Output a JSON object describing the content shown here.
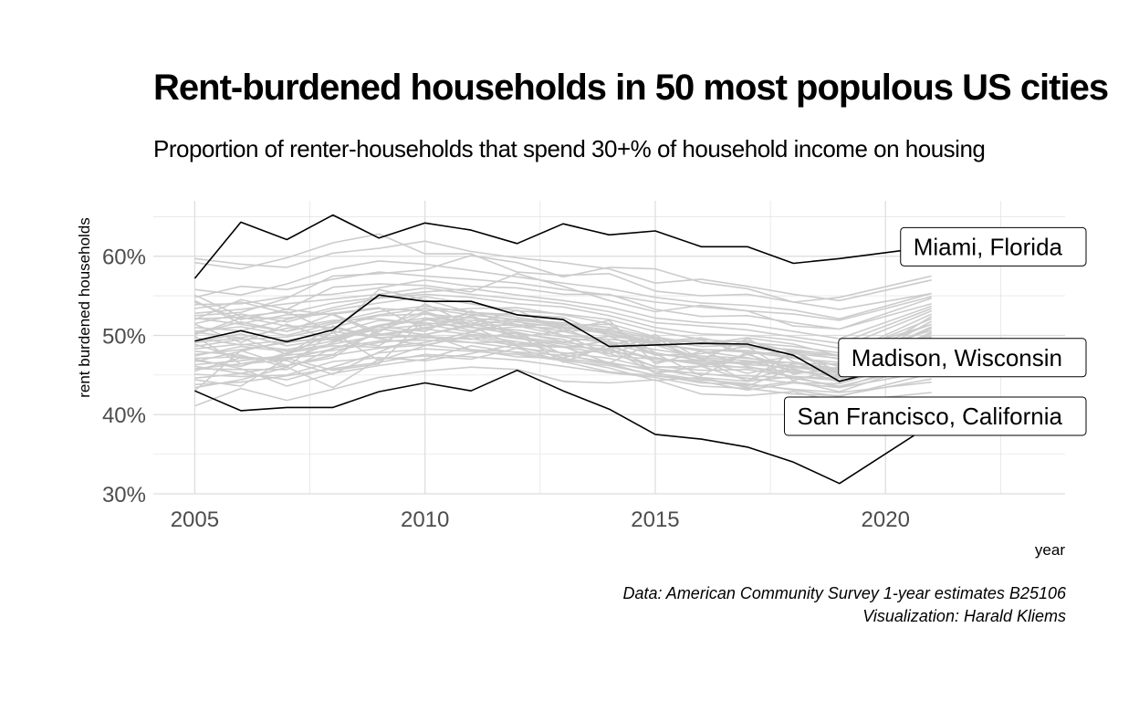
{
  "title": "Rent-burdened households in 50 most populous US cities",
  "subtitle": "Proportion of renter-households that spend 30+% of household income on housing",
  "caption": {
    "line1": "Data: American Community Survey 1-year estimates B25106",
    "line2": "Visualization: Harald Kliems"
  },
  "colors": {
    "highlight": "#000000",
    "background_series": "#cccccc",
    "grid": "#dcdcdc",
    "tick_text": "#4d4d4d"
  },
  "chart_data": {
    "type": "line",
    "title": "Rent-burdened households in 50 most populous US cities",
    "subtitle": "Proportion of renter-households that spend 30+% of household income on housing",
    "xlabel": "year",
    "ylabel": "rent burdened households",
    "x": [
      2005,
      2006,
      2007,
      2008,
      2009,
      2010,
      2011,
      2012,
      2013,
      2014,
      2015,
      2016,
      2017,
      2018,
      2019,
      2021
    ],
    "xlim": [
      2004.1,
      2023.9
    ],
    "ylim": [
      0.3,
      0.67
    ],
    "x_ticks": [
      2005,
      2010,
      2015,
      2020
    ],
    "x_tick_labels": [
      "2005",
      "2010",
      "2015",
      "2020"
    ],
    "y_ticks": [
      0.3,
      0.4,
      0.5,
      0.6
    ],
    "y_tick_labels": [
      "30%",
      "40%",
      "50%",
      "60%"
    ],
    "grid": true,
    "highlighted_series": [
      {
        "name": "Miami, Florida",
        "values": [
          0.572,
          0.643,
          0.621,
          0.652,
          0.623,
          0.642,
          0.633,
          0.616,
          0.641,
          0.627,
          0.632,
          0.612,
          0.612,
          0.591,
          0.597,
          0.612
        ]
      },
      {
        "name": "Madison, Wisconsin",
        "values": [
          0.493,
          0.506,
          0.492,
          0.507,
          0.551,
          0.543,
          0.543,
          0.526,
          0.52,
          0.486,
          0.488,
          0.49,
          0.489,
          0.475,
          0.442,
          0.472
        ]
      },
      {
        "name": "San Francisco, California",
        "values": [
          0.43,
          0.405,
          0.409,
          0.409,
          0.429,
          0.44,
          0.43,
          0.456,
          0.43,
          0.407,
          0.375,
          0.369,
          0.359,
          0.34,
          0.313,
          0.388
        ]
      }
    ],
    "background_series": [
      {
        "values": [
          0.43,
          0.481,
          0.462,
          0.472,
          0.508,
          0.501,
          0.514,
          0.504,
          0.476,
          0.464,
          0.449,
          0.445,
          0.436,
          0.458,
          0.441,
          0.492
        ]
      },
      {
        "values": [
          0.491,
          0.497,
          0.476,
          0.512,
          0.497,
          0.499,
          0.495,
          0.504,
          0.492,
          0.499,
          0.475,
          0.477,
          0.486,
          0.451,
          0.46,
          0.475
        ]
      },
      {
        "values": [
          0.542,
          0.52,
          0.533,
          0.526,
          0.501,
          0.51,
          0.517,
          0.497,
          0.486,
          0.465,
          0.492,
          0.47,
          0.442,
          0.48,
          0.454,
          0.524
        ]
      },
      {
        "values": [
          0.444,
          0.436,
          0.471,
          0.456,
          0.464,
          0.521,
          0.506,
          0.511,
          0.509,
          0.487,
          0.501,
          0.47,
          0.463,
          0.46,
          0.454,
          0.504
        ]
      },
      {
        "values": [
          0.501,
          0.522,
          0.522,
          0.528,
          0.535,
          0.508,
          0.525,
          0.502,
          0.466,
          0.488,
          0.467,
          0.469,
          0.496,
          0.467,
          0.454,
          0.518
        ]
      },
      {
        "values": [
          0.521,
          0.523,
          0.512,
          0.51,
          0.496,
          0.488,
          0.499,
          0.489,
          0.492,
          0.499,
          0.477,
          0.449,
          0.479,
          0.443,
          0.458,
          0.509
        ]
      },
      {
        "values": [
          0.458,
          0.457,
          0.457,
          0.484,
          0.493,
          0.494,
          0.491,
          0.492,
          0.485,
          0.493,
          0.452,
          0.461,
          0.443,
          0.461,
          0.457,
          0.511
        ]
      },
      {
        "values": [
          0.458,
          0.464,
          0.469,
          0.491,
          0.511,
          0.505,
          0.531,
          0.512,
          0.5,
          0.477,
          0.494,
          0.491,
          0.493,
          0.479,
          0.45,
          0.488
        ]
      },
      {
        "values": [
          0.514,
          0.491,
          0.514,
          0.494,
          0.487,
          0.521,
          0.514,
          0.532,
          0.506,
          0.519,
          0.464,
          0.48,
          0.461,
          0.448,
          0.443,
          0.503
        ]
      },
      {
        "values": [
          0.471,
          0.473,
          0.468,
          0.451,
          0.479,
          0.502,
          0.482,
          0.473,
          0.471,
          0.464,
          0.458,
          0.447,
          0.442,
          0.448,
          0.434,
          0.47
        ]
      },
      {
        "values": [
          0.551,
          0.524,
          0.53,
          0.504,
          0.558,
          0.545,
          0.529,
          0.526,
          0.523,
          0.499,
          0.492,
          0.494,
          0.477,
          0.479,
          0.474,
          0.527
        ]
      },
      {
        "values": [
          0.499,
          0.464,
          0.475,
          0.504,
          0.468,
          0.487,
          0.501,
          0.492,
          0.477,
          0.482,
          0.498,
          0.461,
          0.476,
          0.458,
          0.442,
          0.467
        ]
      },
      {
        "values": [
          0.48,
          0.475,
          0.46,
          0.505,
          0.497,
          0.501,
          0.512,
          0.486,
          0.472,
          0.484,
          0.46,
          0.461,
          0.46,
          0.453,
          0.456,
          0.492
        ]
      },
      {
        "values": [
          0.544,
          0.515,
          0.526,
          0.527,
          0.504,
          0.54,
          0.513,
          0.513,
          0.513,
          0.514,
          0.478,
          0.468,
          0.452,
          0.464,
          0.464,
          0.509
        ]
      },
      {
        "values": [
          0.451,
          0.448,
          0.45,
          0.467,
          0.472,
          0.468,
          0.477,
          0.489,
          0.486,
          0.483,
          0.452,
          0.444,
          0.439,
          0.431,
          0.423,
          0.452
        ]
      },
      {
        "values": [
          0.504,
          0.497,
          0.509,
          0.519,
          0.521,
          0.514,
          0.504,
          0.518,
          0.5,
          0.495,
          0.49,
          0.48,
          0.472,
          0.46,
          0.452,
          0.496
        ]
      },
      {
        "values": [
          0.489,
          0.471,
          0.472,
          0.476,
          0.505,
          0.528,
          0.51,
          0.502,
          0.495,
          0.474,
          0.47,
          0.467,
          0.464,
          0.474,
          0.461,
          0.484
        ]
      },
      {
        "values": [
          0.434,
          0.444,
          0.46,
          0.434,
          0.47,
          0.474,
          0.47,
          0.484,
          0.467,
          0.454,
          0.449,
          0.442,
          0.431,
          0.44,
          0.434,
          0.455
        ]
      },
      {
        "values": [
          0.467,
          0.48,
          0.493,
          0.495,
          0.508,
          0.513,
          0.523,
          0.498,
          0.505,
          0.508,
          0.488,
          0.47,
          0.465,
          0.466,
          0.448,
          0.481
        ]
      },
      {
        "values": [
          0.539,
          0.54,
          0.549,
          0.552,
          0.56,
          0.57,
          0.562,
          0.56,
          0.552,
          0.552,
          0.533,
          0.524,
          0.525,
          0.516,
          0.508,
          0.547
        ]
      },
      {
        "values": [
          0.592,
          0.584,
          0.598,
          0.617,
          0.628,
          0.603,
          0.603,
          0.58,
          0.576,
          0.578,
          0.556,
          0.55,
          0.552,
          0.542,
          0.548,
          0.575
        ]
      },
      {
        "values": [
          0.525,
          0.529,
          0.547,
          0.575,
          0.578,
          0.583,
          0.601,
          0.592,
          0.574,
          0.586,
          0.584,
          0.567,
          0.559,
          0.542,
          0.533,
          0.553
        ]
      },
      {
        "values": [
          0.52,
          0.545,
          0.533,
          0.561,
          0.565,
          0.563,
          0.555,
          0.578,
          0.562,
          0.544,
          0.53,
          0.538,
          0.531,
          0.512,
          0.508,
          0.54
        ]
      },
      {
        "values": [
          0.47,
          0.458,
          0.436,
          0.452,
          0.462,
          0.47,
          0.487,
          0.478,
          0.47,
          0.459,
          0.443,
          0.447,
          0.434,
          0.442,
          0.429,
          0.467
        ]
      },
      {
        "values": [
          0.411,
          0.433,
          0.418,
          0.432,
          0.447,
          0.455,
          0.46,
          0.457,
          0.442,
          0.44,
          0.444,
          0.426,
          0.424,
          0.429,
          0.416,
          0.428
        ]
      },
      {
        "values": [
          0.483,
          0.489,
          0.482,
          0.493,
          0.511,
          0.53,
          0.513,
          0.521,
          0.511,
          0.505,
          0.492,
          0.497,
          0.485,
          0.477,
          0.471,
          0.514
        ]
      },
      {
        "values": [
          0.502,
          0.517,
          0.505,
          0.527,
          0.534,
          0.531,
          0.534,
          0.535,
          0.526,
          0.515,
          0.498,
          0.489,
          0.497,
          0.489,
          0.474,
          0.521
        ]
      },
      {
        "values": [
          0.463,
          0.468,
          0.475,
          0.481,
          0.491,
          0.497,
          0.496,
          0.487,
          0.485,
          0.477,
          0.461,
          0.456,
          0.457,
          0.448,
          0.446,
          0.476
        ]
      },
      {
        "values": [
          0.548,
          0.562,
          0.558,
          0.571,
          0.58,
          0.575,
          0.571,
          0.566,
          0.558,
          0.551,
          0.542,
          0.536,
          0.531,
          0.527,
          0.519,
          0.549
        ]
      },
      {
        "values": [
          0.455,
          0.472,
          0.47,
          0.483,
          0.502,
          0.498,
          0.491,
          0.484,
          0.478,
          0.471,
          0.458,
          0.451,
          0.449,
          0.446,
          0.436,
          0.463
        ]
      },
      {
        "values": [
          0.522,
          0.514,
          0.505,
          0.517,
          0.53,
          0.537,
          0.529,
          0.523,
          0.514,
          0.503,
          0.489,
          0.482,
          0.481,
          0.473,
          0.462,
          0.498
        ]
      },
      {
        "values": [
          0.476,
          0.482,
          0.491,
          0.498,
          0.513,
          0.522,
          0.519,
          0.514,
          0.505,
          0.492,
          0.482,
          0.474,
          0.471,
          0.465,
          0.458,
          0.487
        ]
      },
      {
        "values": [
          0.597,
          0.59,
          0.586,
          0.604,
          0.61,
          0.619,
          0.606,
          0.598,
          0.592,
          0.584,
          0.566,
          0.571,
          0.562,
          0.552,
          0.544,
          0.57
        ]
      },
      {
        "values": [
          0.446,
          0.452,
          0.444,
          0.46,
          0.478,
          0.483,
          0.48,
          0.476,
          0.468,
          0.462,
          0.45,
          0.44,
          0.438,
          0.432,
          0.428,
          0.441
        ]
      },
      {
        "values": [
          0.51,
          0.506,
          0.52,
          0.535,
          0.547,
          0.552,
          0.548,
          0.54,
          0.536,
          0.525,
          0.51,
          0.502,
          0.5,
          0.494,
          0.484,
          0.531
        ]
      },
      {
        "values": [
          0.486,
          0.495,
          0.498,
          0.51,
          0.525,
          0.527,
          0.522,
          0.517,
          0.51,
          0.502,
          0.488,
          0.482,
          0.479,
          0.471,
          0.466,
          0.5
        ]
      },
      {
        "values": [
          0.468,
          0.461,
          0.478,
          0.487,
          0.485,
          0.491,
          0.504,
          0.496,
          0.489,
          0.48,
          0.472,
          0.463,
          0.467,
          0.456,
          0.447,
          0.479
        ]
      },
      {
        "values": [
          0.528,
          0.533,
          0.54,
          0.546,
          0.552,
          0.56,
          0.552,
          0.546,
          0.54,
          0.53,
          0.516,
          0.512,
          0.507,
          0.498,
          0.49,
          0.534
        ]
      },
      {
        "values": [
          0.497,
          0.488,
          0.494,
          0.503,
          0.519,
          0.516,
          0.51,
          0.507,
          0.498,
          0.49,
          0.476,
          0.472,
          0.468,
          0.462,
          0.452,
          0.491
        ]
      },
      {
        "values": [
          0.438,
          0.441,
          0.449,
          0.458,
          0.466,
          0.476,
          0.473,
          0.469,
          0.461,
          0.453,
          0.447,
          0.436,
          0.433,
          0.426,
          0.424,
          0.445
        ]
      },
      {
        "values": [
          0.515,
          0.527,
          0.517,
          0.532,
          0.541,
          0.549,
          0.54,
          0.531,
          0.527,
          0.52,
          0.505,
          0.495,
          0.491,
          0.486,
          0.478,
          0.514
        ]
      },
      {
        "values": [
          0.474,
          0.486,
          0.48,
          0.489,
          0.5,
          0.508,
          0.501,
          0.498,
          0.491,
          0.486,
          0.47,
          0.465,
          0.459,
          0.454,
          0.45,
          0.486
        ]
      },
      {
        "values": [
          0.558,
          0.551,
          0.565,
          0.584,
          0.594,
          0.59,
          0.582,
          0.574,
          0.566,
          0.559,
          0.548,
          0.541,
          0.538,
          0.532,
          0.521,
          0.553
        ]
      },
      {
        "values": [
          0.492,
          0.502,
          0.487,
          0.496,
          0.512,
          0.519,
          0.527,
          0.519,
          0.514,
          0.507,
          0.495,
          0.486,
          0.488,
          0.481,
          0.47,
          0.482
        ]
      },
      {
        "values": [
          0.461,
          0.452,
          0.462,
          0.475,
          0.484,
          0.488,
          0.482,
          0.479,
          0.475,
          0.466,
          0.455,
          0.452,
          0.446,
          0.44,
          0.439,
          0.472
        ]
      },
      {
        "values": [
          0.534,
          0.542,
          0.528,
          0.541,
          0.548,
          0.555,
          0.559,
          0.551,
          0.544,
          0.536,
          0.522,
          0.516,
          0.514,
          0.505,
          0.496,
          0.537
        ]
      },
      {
        "values": [
          0.505,
          0.511,
          0.5,
          0.515,
          0.526,
          0.534,
          0.526,
          0.52,
          0.516,
          0.51,
          0.497,
          0.49,
          0.486,
          0.482,
          0.475,
          0.506
        ]
      }
    ],
    "annotations": [
      {
        "text": "Miami, Florida",
        "x": 2021,
        "y": 0.612
      },
      {
        "text": "Madison, Wisconsin",
        "x": 2021,
        "y": 0.472
      },
      {
        "text": "San Francisco, California",
        "x": 2021,
        "y": 0.398
      }
    ],
    "caption": "Data: American Community Survey 1-year estimates B25106 / Visualization: Harald Kliems"
  }
}
